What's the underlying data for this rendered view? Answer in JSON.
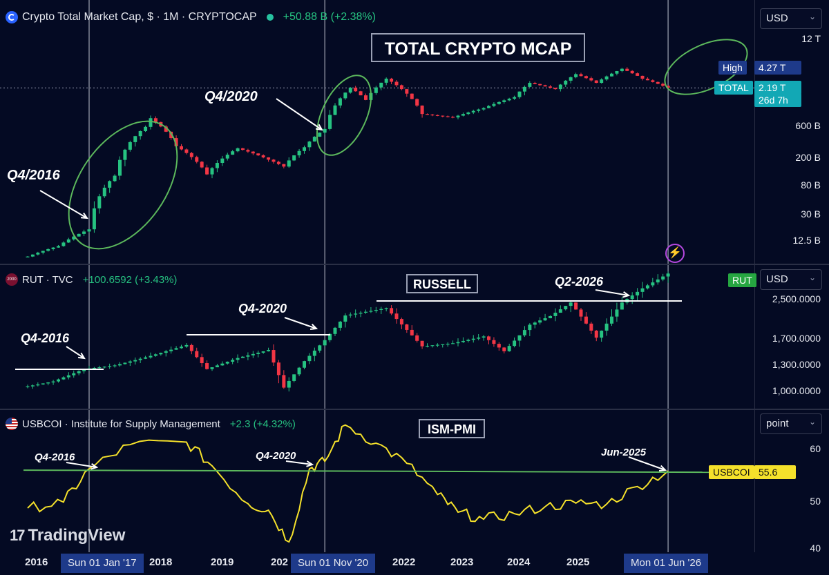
{
  "panes": {
    "crypto": {
      "symbol_text": "Crypto Total Market Cap, $ · 1M · CRYPTOCAP",
      "change_text": "+50.88 B (+2.38%)",
      "banner": "TOTAL CRYPTO MCAP",
      "unit": "USD",
      "ticks": [
        "12 T",
        "600 B",
        "200 B",
        "80 B",
        "30 B",
        "12.5 B"
      ],
      "high_label": "High",
      "high_value": "4.27 T",
      "total_label": "TOTAL",
      "total_value": "2.19 T",
      "countdown": "26d 7h",
      "annotations": [
        "Q4/2016",
        "Q4/2020"
      ]
    },
    "russell": {
      "logo_text": "2000",
      "symbol_text": "RUT · TVC",
      "change_text": "+100.6592 (+3.43%)",
      "banner": "RUSSELL",
      "unit": "USD",
      "ticks": [
        "2,500.0000",
        "1,700.0000",
        "1,300.0000",
        "1,000.0000"
      ],
      "badge": "RUT",
      "annotations": [
        "Q4-2016",
        "Q4-2020",
        "Q2-2026"
      ]
    },
    "ism": {
      "symbol_text": "USBCOI · Institute for Supply Management",
      "change_text": "+2.3 (+4.32%)",
      "banner": "ISM-PMI",
      "unit": "point",
      "ticks": [
        "60",
        "50",
        "40"
      ],
      "badge_label": "USBCOI",
      "badge_value": "55.6",
      "annotations": [
        "Q4-2016",
        "Q4-2020",
        "Jun-2025"
      ]
    }
  },
  "xaxis": {
    "labels": [
      "2016",
      "2018",
      "2019",
      "202",
      "2022",
      "2023",
      "2024",
      "2025"
    ],
    "highlights": [
      "Sun 01 Jan '17",
      "Sun 01 Nov '20",
      "Mon 01 Jun '26"
    ]
  },
  "branding": {
    "logo_text": "TradingView"
  },
  "colors": {
    "up": "#26c281",
    "down": "#f23645",
    "pmi_line": "#f5e12b",
    "level_line": "#5cb85c",
    "ellipse": "#5cb85c",
    "bg": "#040a23"
  },
  "chart_data": [
    {
      "type": "line",
      "title": "TOTAL CRYPTO MCAP",
      "yscale": "log",
      "unit": "USD",
      "x": [
        "2016-01",
        "2016-07",
        "2017-01",
        "2017-06",
        "2017-12",
        "2018-01",
        "2018-06",
        "2018-12",
        "2019-06",
        "2019-12",
        "2020-03",
        "2020-07",
        "2020-11",
        "2021-04",
        "2021-07",
        "2021-11",
        "2022-06",
        "2022-12",
        "2023-06",
        "2023-12",
        "2024-03",
        "2024-08",
        "2024-12",
        "2025-04",
        "2025-09",
        "2026-01",
        "2026-06"
      ],
      "y": [
        7000000000.0,
        10000000000.0,
        17700000000.0,
        110000000000.0,
        580000000000.0,
        780000000000.0,
        300000000000.0,
        115000000000.0,
        280000000000.0,
        190000000000.0,
        150000000000.0,
        290000000000.0,
        540000000000.0,
        2200000000000.0,
        1450000000000.0,
        3000000000000.0,
        900000000000.0,
        800000000000.0,
        1100000000000.0,
        1600000000000.0,
        2600000000000.0,
        2100000000000.0,
        3500000000000.0,
        2600000000000.0,
        4200000000000.0,
        3000000000000.0,
        2190000000000.0
      ],
      "high": "4.27 T",
      "last": "2.19 T"
    },
    {
      "type": "line",
      "title": "RUSSELL",
      "unit": "USD",
      "x": [
        "2016-01",
        "2016-06",
        "2016-12",
        "2017-06",
        "2017-12",
        "2018-08",
        "2018-12",
        "2019-06",
        "2019-12",
        "2020-03",
        "2020-07",
        "2020-11",
        "2021-03",
        "2021-11",
        "2022-06",
        "2022-12",
        "2023-06",
        "2023-10",
        "2024-03",
        "2024-07",
        "2024-11",
        "2025-04",
        "2025-09",
        "2026-01",
        "2026-06"
      ],
      "y": [
        1070,
        1150,
        1350,
        1410,
        1540,
        1740,
        1350,
        1530,
        1660,
        1050,
        1480,
        1820,
        2220,
        2340,
        1720,
        1770,
        1880,
        1640,
        2070,
        2210,
        2430,
        1860,
        2430,
        2660,
        2900
      ],
      "level": 2440
    },
    {
      "type": "line",
      "title": "ISM-PMI",
      "unit": "point",
      "x": [
        "2016-01",
        "2016-08",
        "2017-01",
        "2017-09",
        "2018-08",
        "2019-01",
        "2019-08",
        "2019-12",
        "2020-04",
        "2020-08",
        "2020-11",
        "2021-03",
        "2021-09",
        "2022-03",
        "2022-09",
        "2023-01",
        "2023-06",
        "2023-12",
        "2024-06",
        "2024-12",
        "2025-06",
        "2025-12",
        "2026-06"
      ],
      "y": [
        48.2,
        49.4,
        56.0,
        60.8,
        61.3,
        56.6,
        49.1,
        47.8,
        41.5,
        56.0,
        57.5,
        64.7,
        61.1,
        57.1,
        50.9,
        47.4,
        46.0,
        47.1,
        48.5,
        49.2,
        49.0,
        52.5,
        55.6
      ],
      "level": 55.6
    }
  ]
}
